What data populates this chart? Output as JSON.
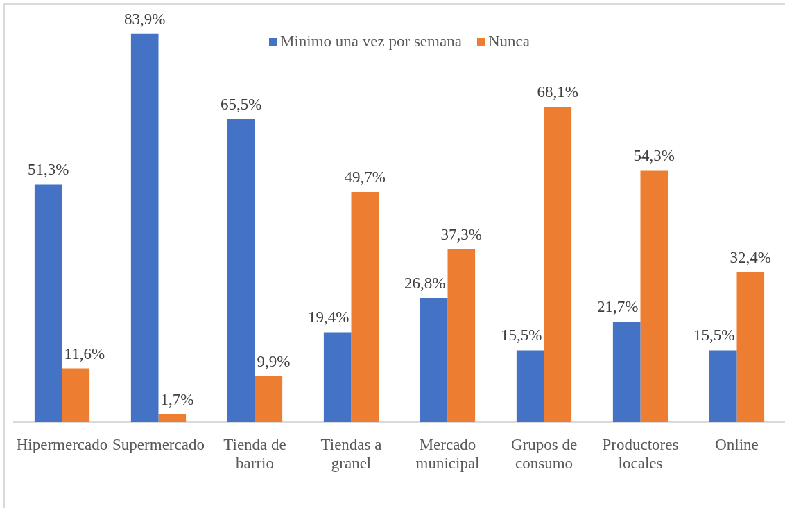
{
  "chart_data": {
    "type": "bar",
    "categories": [
      "Hipermercado",
      "Supermercado",
      "Tienda de barrio",
      "Tiendas a granel",
      "Mercado municipal",
      "Grupos de consumo",
      "Productores locales",
      "Online"
    ],
    "series": [
      {
        "name": "Minimo una vez por semana",
        "color": "#4472c4",
        "values": [
          51.3,
          83.9,
          65.5,
          19.4,
          26.8,
          15.5,
          21.7,
          15.5
        ],
        "value_labels": [
          "51,3%",
          "83,9%",
          "65,5%",
          "19,4%",
          "26,8%",
          "15,5%",
          "21,7%",
          "15,5%"
        ]
      },
      {
        "name": "Nunca",
        "color": "#ed7d31",
        "values": [
          11.6,
          1.7,
          9.9,
          49.7,
          37.3,
          68.1,
          54.3,
          32.4
        ],
        "value_labels": [
          "11,6%",
          "1,7%",
          "9,9%",
          "49,7%",
          "37,3%",
          "68,1%",
          "54,3%",
          "32,4%"
        ]
      }
    ],
    "legend": "top",
    "tick_labels": "x"
  }
}
